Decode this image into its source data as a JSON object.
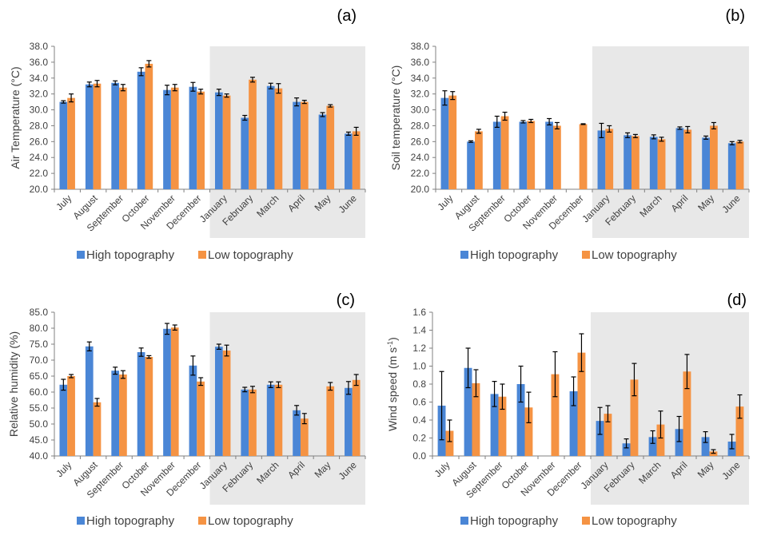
{
  "figure": {
    "legend": [
      "High topography",
      "Low topography"
    ],
    "colors": {
      "high": "#4a86d6",
      "low": "#f59343",
      "shade": "#e8e8e8",
      "axis": "#808080",
      "error": "#000000"
    },
    "shaded_period": {
      "from": "January",
      "to": "June"
    }
  },
  "chart_data": [
    {
      "type": "bar",
      "panel": "(a)",
      "ylabel": "Air Temperature (°C)",
      "xlabel": "",
      "ylim": [
        20,
        38
      ],
      "yticks": [
        "20.0",
        "22.0",
        "24.0",
        "26.0",
        "28.0",
        "30.0",
        "32.0",
        "34.0",
        "36.0",
        "38.0"
      ],
      "categories": [
        "July",
        "August",
        "September",
        "October",
        "November",
        "December",
        "January",
        "February",
        "March",
        "April",
        "May",
        "June"
      ],
      "series": [
        {
          "name": "High topography",
          "values": [
            31.0,
            33.2,
            33.4,
            34.8,
            32.5,
            32.9,
            32.2,
            29.0,
            33.0,
            31.0,
            29.4,
            27.0
          ],
          "errors": [
            0.15,
            0.3,
            0.25,
            0.5,
            0.6,
            0.55,
            0.4,
            0.3,
            0.35,
            0.5,
            0.25,
            0.2
          ]
        },
        {
          "name": "Low topography",
          "values": [
            31.5,
            33.3,
            32.8,
            35.8,
            32.8,
            32.3,
            31.8,
            33.8,
            32.7,
            31.0,
            30.5,
            27.3
          ],
          "errors": [
            0.5,
            0.4,
            0.4,
            0.4,
            0.4,
            0.3,
            0.2,
            0.3,
            0.6,
            0.2,
            0.15,
            0.5
          ]
        }
      ],
      "grid": false,
      "legend_position": "bottom"
    },
    {
      "type": "bar",
      "panel": "(b)",
      "ylabel": "Soil temperature (°C)",
      "xlabel": "",
      "ylim": [
        20,
        38
      ],
      "yticks": [
        "20.0",
        "22.0",
        "24.0",
        "26.0",
        "28.0",
        "30.0",
        "32.0",
        "34.0",
        "36.0",
        "38.0"
      ],
      "categories": [
        "July",
        "August",
        "September",
        "October",
        "November",
        "December",
        "January",
        "February",
        "March",
        "April",
        "May",
        "June"
      ],
      "series": [
        {
          "name": "High topography",
          "values": [
            31.5,
            26.0,
            28.5,
            28.5,
            28.5,
            null,
            27.4,
            26.8,
            26.6,
            27.7,
            26.5,
            25.8
          ],
          "errors": [
            0.9,
            0.1,
            0.7,
            0.15,
            0.4,
            null,
            0.9,
            0.3,
            0.25,
            0.15,
            0.2,
            0.2
          ]
        },
        {
          "name": "Low topography",
          "values": [
            31.8,
            27.3,
            29.2,
            28.6,
            28.0,
            28.2,
            27.6,
            26.7,
            26.3,
            27.5,
            28.0,
            26.0
          ],
          "errors": [
            0.5,
            0.25,
            0.5,
            0.2,
            0.4,
            0.05,
            0.4,
            0.2,
            0.25,
            0.4,
            0.4,
            0.15
          ]
        }
      ],
      "grid": false,
      "legend_position": "bottom"
    },
    {
      "type": "bar",
      "panel": "(c)",
      "ylabel": "Relative humidity (%)",
      "xlabel": "",
      "ylim": [
        40,
        85
      ],
      "yticks": [
        "40.0",
        "45.0",
        "50.0",
        "55.0",
        "60.0",
        "65.0",
        "70.0",
        "75.0",
        "80.0",
        "85.0"
      ],
      "categories": [
        "July",
        "August",
        "September",
        "October",
        "November",
        "December",
        "January",
        "February",
        "March",
        "April",
        "May",
        "June"
      ],
      "series": [
        {
          "name": "High topography",
          "values": [
            62.3,
            74.3,
            66.7,
            72.5,
            79.8,
            68.3,
            74.2,
            60.8,
            62.3,
            54.3,
            null,
            61.3
          ],
          "errors": [
            1.7,
            1.4,
            1.1,
            1.3,
            1.7,
            3.0,
            0.8,
            0.7,
            0.9,
            1.5,
            null,
            2.0
          ]
        },
        {
          "name": "Low topography",
          "values": [
            65.0,
            56.8,
            65.5,
            71.0,
            80.2,
            63.3,
            73.0,
            60.8,
            62.3,
            51.7,
            61.8,
            63.8
          ],
          "errors": [
            0.5,
            1.2,
            1.2,
            0.4,
            0.8,
            1.2,
            1.7,
            1.0,
            0.9,
            1.6,
            1.2,
            1.7
          ]
        }
      ],
      "grid": false,
      "legend_position": "bottom"
    },
    {
      "type": "bar",
      "panel": "(d)",
      "ylabel": "Wind speed (m s",
      "ylabel_sup": "-1",
      "ylabel_end": ")",
      "xlabel": "",
      "ylim": [
        0,
        1.6
      ],
      "yticks": [
        "0.0",
        "0.2",
        "0.4",
        "0.6",
        "0.8",
        "1.0",
        "1.2",
        "1.4",
        "1.6"
      ],
      "categories": [
        "July",
        "August",
        "September",
        "October",
        "November",
        "December",
        "January",
        "February",
        "March",
        "April",
        "May",
        "June"
      ],
      "series": [
        {
          "name": "High topography",
          "values": [
            0.56,
            0.98,
            0.69,
            0.8,
            null,
            0.72,
            0.39,
            0.14,
            0.21,
            0.3,
            0.21,
            0.16
          ],
          "errors": [
            0.38,
            0.22,
            0.14,
            0.2,
            null,
            0.16,
            0.15,
            0.05,
            0.07,
            0.14,
            0.06,
            0.08
          ]
        },
        {
          "name": "Low topography",
          "values": [
            0.28,
            0.81,
            0.66,
            0.54,
            0.91,
            1.15,
            0.47,
            0.85,
            0.35,
            0.94,
            0.05,
            0.55
          ],
          "errors": [
            0.12,
            0.15,
            0.14,
            0.17,
            0.25,
            0.21,
            0.09,
            0.18,
            0.15,
            0.19,
            0.02,
            0.13
          ]
        }
      ],
      "grid": false,
      "legend_position": "bottom"
    }
  ]
}
